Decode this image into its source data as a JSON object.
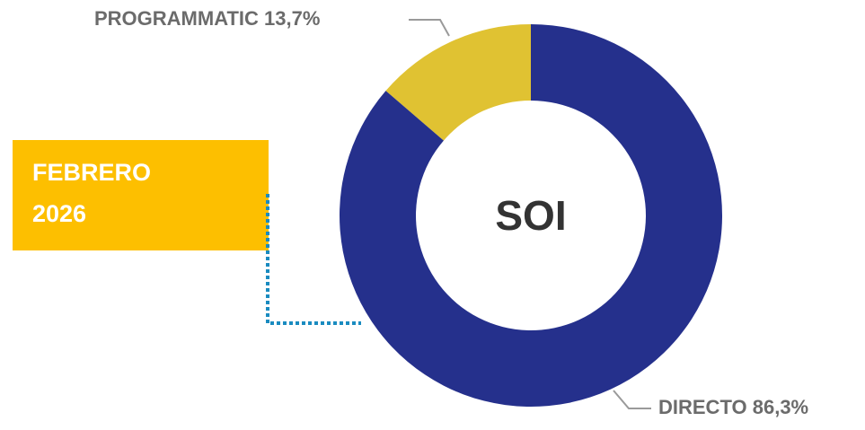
{
  "chart_data": {
    "type": "donut",
    "categories": [
      "PROGRAMMATIC",
      "DIRECTO"
    ],
    "values": [
      13.7,
      86.3
    ],
    "value_labels": [
      "13,7%",
      "86,3%"
    ],
    "colors": [
      "#e0c232",
      "#25308c"
    ],
    "center_label": "SOI",
    "annotations": [
      "FEBRERO",
      "2026"
    ]
  }
}
